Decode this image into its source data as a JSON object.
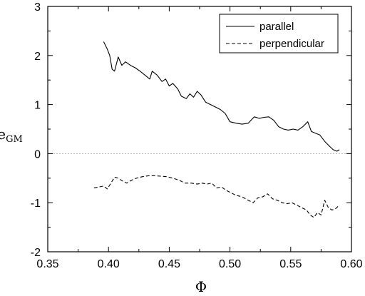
{
  "chart_data": {
    "type": "line",
    "xlabel": "Φ",
    "ylabel": "e",
    "ylabel_subscript": "GM",
    "xlim": [
      0.35,
      0.6
    ],
    "ylim": [
      -2,
      3
    ],
    "x_ticks": [
      0.35,
      0.4,
      0.45,
      0.5,
      0.55,
      0.6
    ],
    "x_tick_labels": [
      "0.35",
      "0.40",
      "0.45",
      "0.50",
      "0.55",
      "0.60"
    ],
    "y_ticks": [
      -2,
      -1,
      0,
      1,
      2,
      3
    ],
    "y_tick_labels": [
      "-2",
      "-1",
      "0",
      "1",
      "2",
      "3"
    ],
    "reference_line": {
      "y": 0,
      "style": "dotted",
      "color": "#b0b0b0"
    },
    "grid": false,
    "legend": {
      "position": "top-right"
    },
    "series": [
      {
        "name": "parallel",
        "style": "solid",
        "color": "#000000",
        "points": [
          [
            0.396,
            2.28
          ],
          [
            0.399,
            2.13
          ],
          [
            0.401,
            2.0
          ],
          [
            0.403,
            1.72
          ],
          [
            0.405,
            1.68
          ],
          [
            0.408,
            1.97
          ],
          [
            0.411,
            1.8
          ],
          [
            0.414,
            1.87
          ],
          [
            0.418,
            1.8
          ],
          [
            0.422,
            1.75
          ],
          [
            0.426,
            1.68
          ],
          [
            0.43,
            1.6
          ],
          [
            0.434,
            1.52
          ],
          [
            0.436,
            1.68
          ],
          [
            0.44,
            1.6
          ],
          [
            0.444,
            1.47
          ],
          [
            0.447,
            1.52
          ],
          [
            0.45,
            1.38
          ],
          [
            0.453,
            1.43
          ],
          [
            0.457,
            1.32
          ],
          [
            0.46,
            1.17
          ],
          [
            0.464,
            1.12
          ],
          [
            0.467,
            1.22
          ],
          [
            0.47,
            1.15
          ],
          [
            0.473,
            1.27
          ],
          [
            0.476,
            1.2
          ],
          [
            0.48,
            1.05
          ],
          [
            0.484,
            1.0
          ],
          [
            0.488,
            0.95
          ],
          [
            0.492,
            0.9
          ],
          [
            0.496,
            0.82
          ],
          [
            0.5,
            0.65
          ],
          [
            0.505,
            0.62
          ],
          [
            0.51,
            0.6
          ],
          [
            0.515,
            0.62
          ],
          [
            0.52,
            0.75
          ],
          [
            0.524,
            0.72
          ],
          [
            0.528,
            0.74
          ],
          [
            0.532,
            0.75
          ],
          [
            0.536,
            0.68
          ],
          [
            0.54,
            0.55
          ],
          [
            0.544,
            0.5
          ],
          [
            0.548,
            0.48
          ],
          [
            0.552,
            0.5
          ],
          [
            0.556,
            0.48
          ],
          [
            0.56,
            0.55
          ],
          [
            0.564,
            0.65
          ],
          [
            0.567,
            0.45
          ],
          [
            0.57,
            0.42
          ],
          [
            0.574,
            0.38
          ],
          [
            0.578,
            0.25
          ],
          [
            0.582,
            0.15
          ],
          [
            0.585,
            0.08
          ],
          [
            0.588,
            0.05
          ],
          [
            0.59,
            0.08
          ]
        ]
      },
      {
        "name": "perpendicular",
        "style": "dashed",
        "color": "#000000",
        "points": [
          [
            0.388,
            -0.7
          ],
          [
            0.392,
            -0.68
          ],
          [
            0.396,
            -0.66
          ],
          [
            0.399,
            -0.72
          ],
          [
            0.402,
            -0.6
          ],
          [
            0.405,
            -0.48
          ],
          [
            0.408,
            -0.5
          ],
          [
            0.411,
            -0.55
          ],
          [
            0.415,
            -0.6
          ],
          [
            0.419,
            -0.54
          ],
          [
            0.423,
            -0.5
          ],
          [
            0.428,
            -0.47
          ],
          [
            0.433,
            -0.45
          ],
          [
            0.438,
            -0.45
          ],
          [
            0.443,
            -0.46
          ],
          [
            0.448,
            -0.47
          ],
          [
            0.453,
            -0.5
          ],
          [
            0.458,
            -0.54
          ],
          [
            0.463,
            -0.6
          ],
          [
            0.468,
            -0.6
          ],
          [
            0.473,
            -0.62
          ],
          [
            0.477,
            -0.6
          ],
          [
            0.481,
            -0.62
          ],
          [
            0.485,
            -0.6
          ],
          [
            0.489,
            -0.7
          ],
          [
            0.493,
            -0.68
          ],
          [
            0.497,
            -0.75
          ],
          [
            0.501,
            -0.8
          ],
          [
            0.505,
            -0.85
          ],
          [
            0.51,
            -0.88
          ],
          [
            0.515,
            -0.95
          ],
          [
            0.519,
            -1.0
          ],
          [
            0.523,
            -0.9
          ],
          [
            0.527,
            -0.88
          ],
          [
            0.531,
            -0.82
          ],
          [
            0.535,
            -0.92
          ],
          [
            0.539,
            -0.95
          ],
          [
            0.543,
            -1.0
          ],
          [
            0.547,
            -1.02
          ],
          [
            0.551,
            -1.0
          ],
          [
            0.555,
            -1.05
          ],
          [
            0.559,
            -1.1
          ],
          [
            0.563,
            -1.15
          ],
          [
            0.566,
            -1.25
          ],
          [
            0.569,
            -1.3
          ],
          [
            0.572,
            -1.2
          ],
          [
            0.575,
            -1.25
          ],
          [
            0.578,
            -0.95
          ],
          [
            0.581,
            -1.1
          ],
          [
            0.584,
            -1.15
          ],
          [
            0.587,
            -1.12
          ],
          [
            0.59,
            -1.05
          ]
        ]
      }
    ]
  }
}
